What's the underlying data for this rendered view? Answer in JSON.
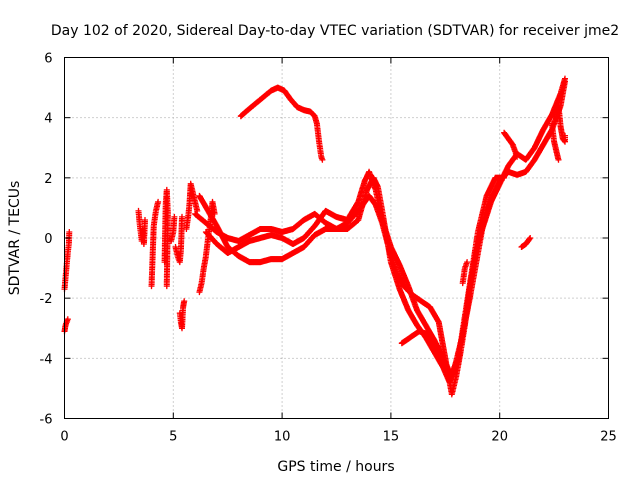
{
  "chart_data": {
    "type": "scatter",
    "title": "Day 102 of 2020, Sidereal Day-to-day VTEC variation (SDTVAR) for receiver jme2",
    "xlabel": "GPS time / hours",
    "ylabel": "SDTVAR / TECUs",
    "xlim": [
      0,
      25
    ],
    "ylim": [
      -6,
      6
    ],
    "xticks": [
      "0",
      "5",
      "10",
      "15",
      "20",
      "25"
    ],
    "yticks": [
      "-6",
      "-4",
      "-2",
      "0",
      "2",
      "4",
      "6"
    ],
    "grid": true,
    "marker": "plus",
    "color": "#ff0000",
    "series": [
      {
        "segments": [
          [
            [
              0.0,
              -3.1
            ],
            [
              0.05,
              -2.9
            ],
            [
              0.1,
              -2.8
            ],
            [
              0.15,
              -2.7
            ]
          ],
          [
            [
              0.0,
              -1.7
            ],
            [
              0.05,
              -1.3
            ],
            [
              0.1,
              -0.9
            ],
            [
              0.15,
              -0.5
            ],
            [
              0.2,
              -0.2
            ],
            [
              0.22,
              0.2
            ]
          ],
          [
            [
              3.4,
              0.9
            ],
            [
              3.45,
              0.5
            ],
            [
              3.5,
              0.2
            ],
            [
              3.55,
              -0.1
            ],
            [
              3.6,
              0.3
            ],
            [
              3.65,
              -0.2
            ],
            [
              3.7,
              0.6
            ]
          ],
          [
            [
              4.0,
              -1.6
            ],
            [
              4.1,
              0.4
            ],
            [
              4.2,
              0.9
            ],
            [
              4.3,
              1.2
            ]
          ],
          [
            [
              4.6,
              -0.8
            ],
            [
              4.65,
              1.1
            ],
            [
              4.7,
              1.6
            ],
            [
              4.75,
              0.8
            ],
            [
              4.7,
              -1.6
            ]
          ],
          [
            [
              4.9,
              -0.1
            ],
            [
              5.0,
              0.2
            ],
            [
              5.05,
              0.7
            ]
          ],
          [
            [
              5.1,
              -0.3
            ],
            [
              5.2,
              -0.6
            ],
            [
              5.3,
              -0.8
            ],
            [
              5.35,
              -0.4
            ],
            [
              5.4,
              0.7
            ]
          ],
          [
            [
              5.3,
              -2.5
            ],
            [
              5.35,
              -2.8
            ],
            [
              5.4,
              -3.0
            ],
            [
              5.45,
              -2.3
            ],
            [
              5.5,
              -2.1
            ]
          ],
          [
            [
              5.6,
              0.3
            ],
            [
              5.7,
              0.8
            ],
            [
              5.75,
              1.2
            ],
            [
              5.8,
              1.8
            ],
            [
              5.9,
              1.5
            ],
            [
              6.0,
              1.2
            ],
            [
              6.1,
              0.9
            ]
          ],
          [
            [
              6.2,
              -1.8
            ],
            [
              6.3,
              -1.5
            ],
            [
              6.4,
              -1.0
            ],
            [
              6.5,
              -0.6
            ],
            [
              6.6,
              0.0
            ],
            [
              6.7,
              0.5
            ],
            [
              6.8,
              1.2
            ],
            [
              6.9,
              0.8
            ]
          ],
          [
            [
              8.1,
              4.05
            ],
            [
              8.5,
              4.3
            ],
            [
              9.0,
              4.6
            ],
            [
              9.5,
              4.9
            ],
            [
              9.8,
              5.0
            ],
            [
              10.1,
              4.9
            ],
            [
              10.4,
              4.6
            ],
            [
              10.7,
              4.35
            ],
            [
              11.0,
              4.25
            ],
            [
              11.3,
              4.2
            ],
            [
              11.5,
              4.05
            ],
            [
              11.6,
              3.8
            ],
            [
              11.7,
              3.2
            ],
            [
              11.8,
              2.7
            ],
            [
              11.85,
              2.6
            ]
          ],
          [
            [
              6.0,
              0.8
            ],
            [
              6.5,
              0.5
            ],
            [
              7.0,
              0.2
            ],
            [
              7.5,
              0.0
            ],
            [
              8.0,
              -0.1
            ],
            [
              8.5,
              0.1
            ],
            [
              9.0,
              0.3
            ],
            [
              9.5,
              0.3
            ],
            [
              10.0,
              0.2
            ],
            [
              10.5,
              0.3
            ],
            [
              11.0,
              0.6
            ],
            [
              11.5,
              0.8
            ],
            [
              12.0,
              0.5
            ],
            [
              12.5,
              0.3
            ],
            [
              13.0,
              0.5
            ],
            [
              13.5,
              0.9
            ],
            [
              14.0,
              1.4
            ],
            [
              14.3,
              1.1
            ],
            [
              14.6,
              0.5
            ],
            [
              15.0,
              -0.6
            ],
            [
              15.3,
              -1.2
            ],
            [
              15.6,
              -1.6
            ],
            [
              16.0,
              -1.9
            ],
            [
              16.4,
              -2.1
            ],
            [
              16.8,
              -2.3
            ],
            [
              17.2,
              -2.8
            ],
            [
              17.6,
              -4.4
            ],
            [
              17.8,
              -5.2
            ],
            [
              18.0,
              -4.6
            ],
            [
              18.2,
              -3.8
            ],
            [
              18.4,
              -2.9
            ],
            [
              18.6,
              -1.8
            ],
            [
              18.8,
              -0.9
            ],
            [
              19.0,
              -0.2
            ],
            [
              19.3,
              0.6
            ],
            [
              19.6,
              1.3
            ],
            [
              20.0,
              1.9
            ],
            [
              20.4,
              2.2
            ],
            [
              20.8,
              2.1
            ],
            [
              21.2,
              2.2
            ],
            [
              21.6,
              2.6
            ],
            [
              22.0,
              3.1
            ],
            [
              22.4,
              3.6
            ],
            [
              22.8,
              4.4
            ],
            [
              23.0,
              5.2
            ]
          ],
          [
            [
              6.2,
              1.4
            ],
            [
              6.6,
              0.9
            ],
            [
              7.0,
              0.4
            ],
            [
              7.5,
              -0.3
            ],
            [
              8.0,
              -0.6
            ],
            [
              8.5,
              -0.8
            ],
            [
              9.0,
              -0.8
            ],
            [
              9.5,
              -0.7
            ],
            [
              10.0,
              -0.7
            ],
            [
              10.5,
              -0.5
            ],
            [
              11.0,
              -0.3
            ],
            [
              11.5,
              0.1
            ],
            [
              12.0,
              0.3
            ],
            [
              12.5,
              0.3
            ],
            [
              13.0,
              0.3
            ],
            [
              13.5,
              0.6
            ],
            [
              13.9,
              1.6
            ],
            [
              14.2,
              2.0
            ],
            [
              14.4,
              1.7
            ],
            [
              14.6,
              0.9
            ],
            [
              15.0,
              -0.8
            ],
            [
              15.4,
              -1.7
            ],
            [
              15.8,
              -2.4
            ],
            [
              16.2,
              -2.9
            ],
            [
              16.6,
              -3.3
            ],
            [
              17.0,
              -3.8
            ],
            [
              17.4,
              -4.3
            ],
            [
              17.7,
              -4.8
            ],
            [
              18.0,
              -4.1
            ],
            [
              18.3,
              -3.2
            ],
            [
              18.6,
              -2.1
            ],
            [
              18.9,
              -0.9
            ],
            [
              19.2,
              0.3
            ],
            [
              19.6,
              1.2
            ],
            [
              20.0,
              1.8
            ],
            [
              20.4,
              2.4
            ],
            [
              20.8,
              2.8
            ],
            [
              21.2,
              2.6
            ],
            [
              21.6,
              3.0
            ],
            [
              22.0,
              3.6
            ],
            [
              22.4,
              4.1
            ],
            [
              22.8,
              4.8
            ],
            [
              23.0,
              5.3
            ]
          ],
          [
            [
              6.5,
              0.2
            ],
            [
              7.0,
              -0.2
            ],
            [
              7.5,
              -0.5
            ],
            [
              8.0,
              -0.3
            ],
            [
              8.5,
              -0.1
            ],
            [
              9.0,
              0.0
            ],
            [
              9.5,
              0.1
            ],
            [
              10.0,
              0.0
            ],
            [
              10.5,
              -0.2
            ],
            [
              11.0,
              0.0
            ],
            [
              11.5,
              0.4
            ],
            [
              12.0,
              0.9
            ],
            [
              12.5,
              0.7
            ],
            [
              13.0,
              0.6
            ],
            [
              13.5,
              1.2
            ],
            [
              13.8,
              1.9
            ],
            [
              14.0,
              2.2
            ],
            [
              14.3,
              1.6
            ],
            [
              14.6,
              0.6
            ],
            [
              15.0,
              -0.3
            ],
            [
              15.4,
              -0.9
            ],
            [
              15.8,
              -1.6
            ],
            [
              16.2,
              -2.4
            ],
            [
              16.6,
              -2.9
            ],
            [
              17.0,
              -3.4
            ],
            [
              17.4,
              -4.0
            ],
            [
              17.8,
              -4.6
            ],
            [
              18.1,
              -4.0
            ],
            [
              18.4,
              -2.6
            ],
            [
              18.7,
              -1.2
            ],
            [
              19.0,
              0.2
            ],
            [
              19.4,
              1.4
            ],
            [
              19.8,
              2.0
            ],
            [
              20.2,
              2.0
            ]
          ],
          [
            [
              15.5,
              -3.5
            ],
            [
              15.9,
              -3.3
            ],
            [
              16.3,
              -3.1
            ],
            [
              16.7,
              -3.2
            ],
            [
              17.1,
              -3.7
            ],
            [
              17.5,
              -4.2
            ]
          ],
          [
            [
              18.3,
              -1.5
            ],
            [
              18.4,
              -1.0
            ],
            [
              18.5,
              -0.8
            ]
          ],
          [
            [
              20.2,
              3.5
            ],
            [
              20.4,
              3.3
            ],
            [
              20.6,
              3.1
            ],
            [
              20.8,
              2.7
            ]
          ],
          [
            [
              21.0,
              -0.3
            ],
            [
              21.2,
              -0.2
            ],
            [
              21.4,
              0.0
            ]
          ],
          [
            [
              22.6,
              4.0
            ],
            [
              22.7,
              4.4
            ],
            [
              22.8,
              3.7
            ],
            [
              22.9,
              3.3
            ],
            [
              23.0,
              3.2
            ],
            [
              23.0,
              3.4
            ]
          ],
          [
            [
              22.4,
              3.8
            ],
            [
              22.5,
              3.2
            ],
            [
              22.6,
              2.9
            ],
            [
              22.7,
              2.6
            ]
          ]
        ]
      }
    ]
  }
}
